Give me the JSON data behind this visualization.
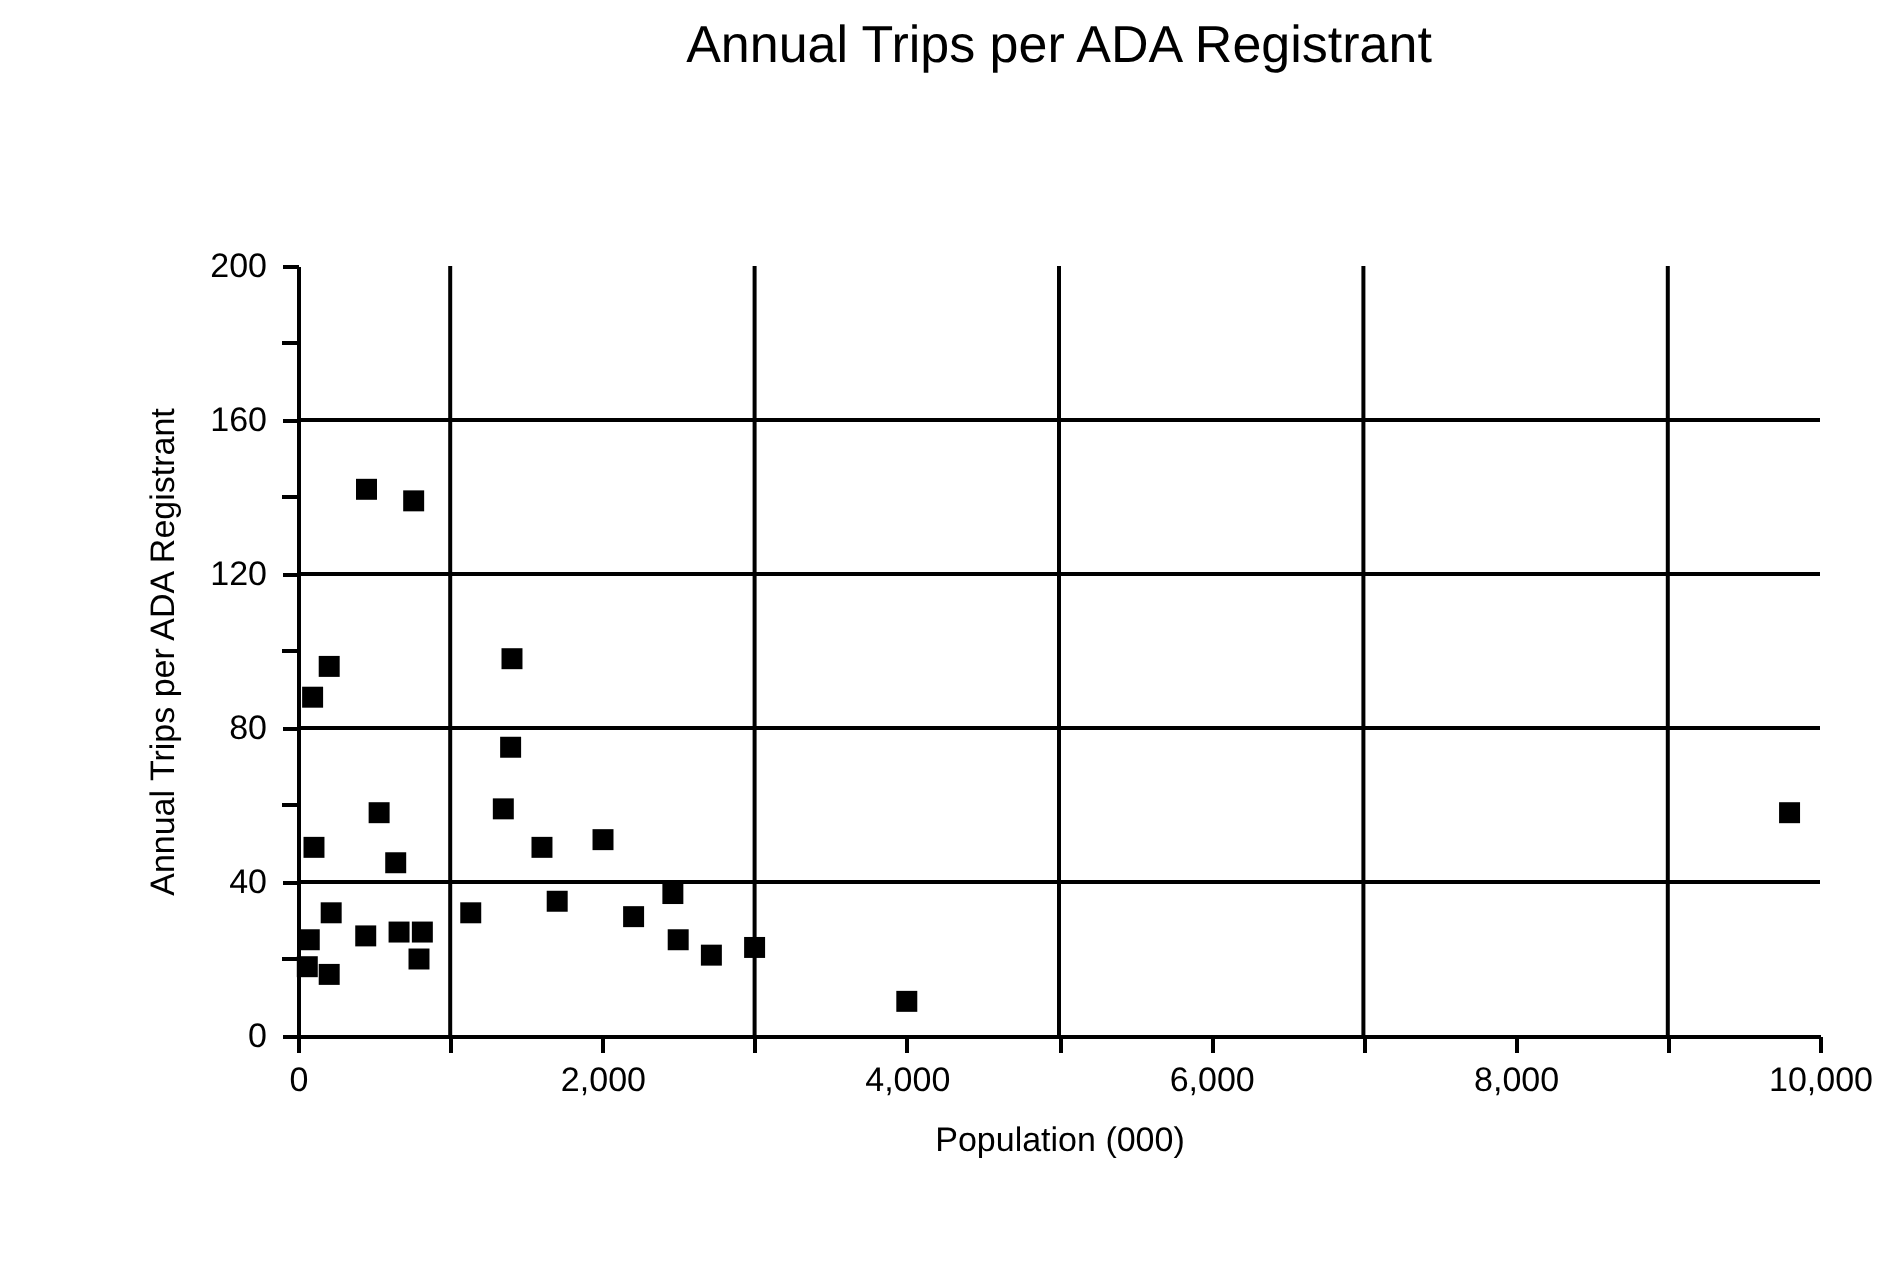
{
  "chart_data": {
    "type": "scatter",
    "title": "Annual Trips per ADA Registrant",
    "xlabel": "Population (000)",
    "ylabel": "Annual Trips per ADA Registrant",
    "x": [
      450,
      760,
      205,
      96,
      1406,
      1397,
      533,
      105,
      642,
      1349,
      1603,
      2004,
      218,
      74,
      445,
      664,
      817,
      795,
      61,
      205,
      1135,
      1703,
      2205,
      2463,
      2498,
      2716,
      3000,
      4000,
      9800
    ],
    "values": [
      142,
      139,
      96,
      88,
      98,
      75,
      58,
      49,
      45,
      59,
      49,
      51,
      32,
      25,
      26,
      27,
      27,
      20,
      18,
      16,
      32,
      35,
      31,
      37,
      25,
      21,
      23,
      9,
      58
    ],
    "color": "#000000",
    "marker": "square",
    "xlim": [
      0,
      10000
    ],
    "ylim": [
      0,
      200
    ],
    "xticks": [
      {
        "value": 0,
        "label": "0"
      },
      {
        "value": 1000,
        "label": null
      },
      {
        "value": 2000,
        "label": "2,000"
      },
      {
        "value": 3000,
        "label": null
      },
      {
        "value": 4000,
        "label": "4,000"
      },
      {
        "value": 5000,
        "label": null
      },
      {
        "value": 6000,
        "label": "6,000"
      },
      {
        "value": 7000,
        "label": null
      },
      {
        "value": 8000,
        "label": "8,000"
      },
      {
        "value": 9000,
        "label": null
      },
      {
        "value": 10000,
        "label": "10,000"
      }
    ],
    "yticks": [
      0,
      {
        "value": 20,
        "label": null
      },
      40,
      {
        "value": 60,
        "label": null
      },
      80,
      {
        "value": 100,
        "label": null
      },
      120,
      {
        "value": 140,
        "label": null
      },
      160,
      {
        "value": 180,
        "label": null
      },
      200
    ],
    "grid": true
  }
}
